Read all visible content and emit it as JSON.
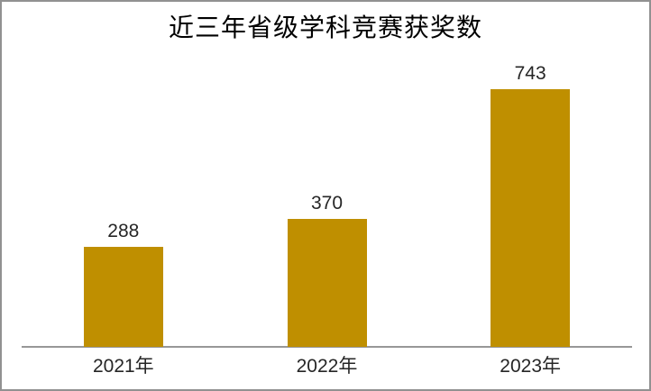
{
  "page": {
    "background": "#FFFFFF",
    "border_color": "#919191"
  },
  "chart_data": {
    "type": "bar",
    "title": "近三年省级学科竞赛获奖数",
    "categories": [
      "2021年",
      "2022年",
      "2023年"
    ],
    "values": [
      288,
      370,
      743
    ],
    "data_labels": [
      "288",
      "370",
      "743"
    ],
    "bar_color": "#BF8F00",
    "axis_color": "#979797",
    "label_text_color": "#262626",
    "title_color": "#000000",
    "xlabel": "",
    "ylabel": "",
    "ylim": [
      0,
      750
    ],
    "grid": false,
    "legend": false,
    "y_axis_labels_visible": false
  }
}
